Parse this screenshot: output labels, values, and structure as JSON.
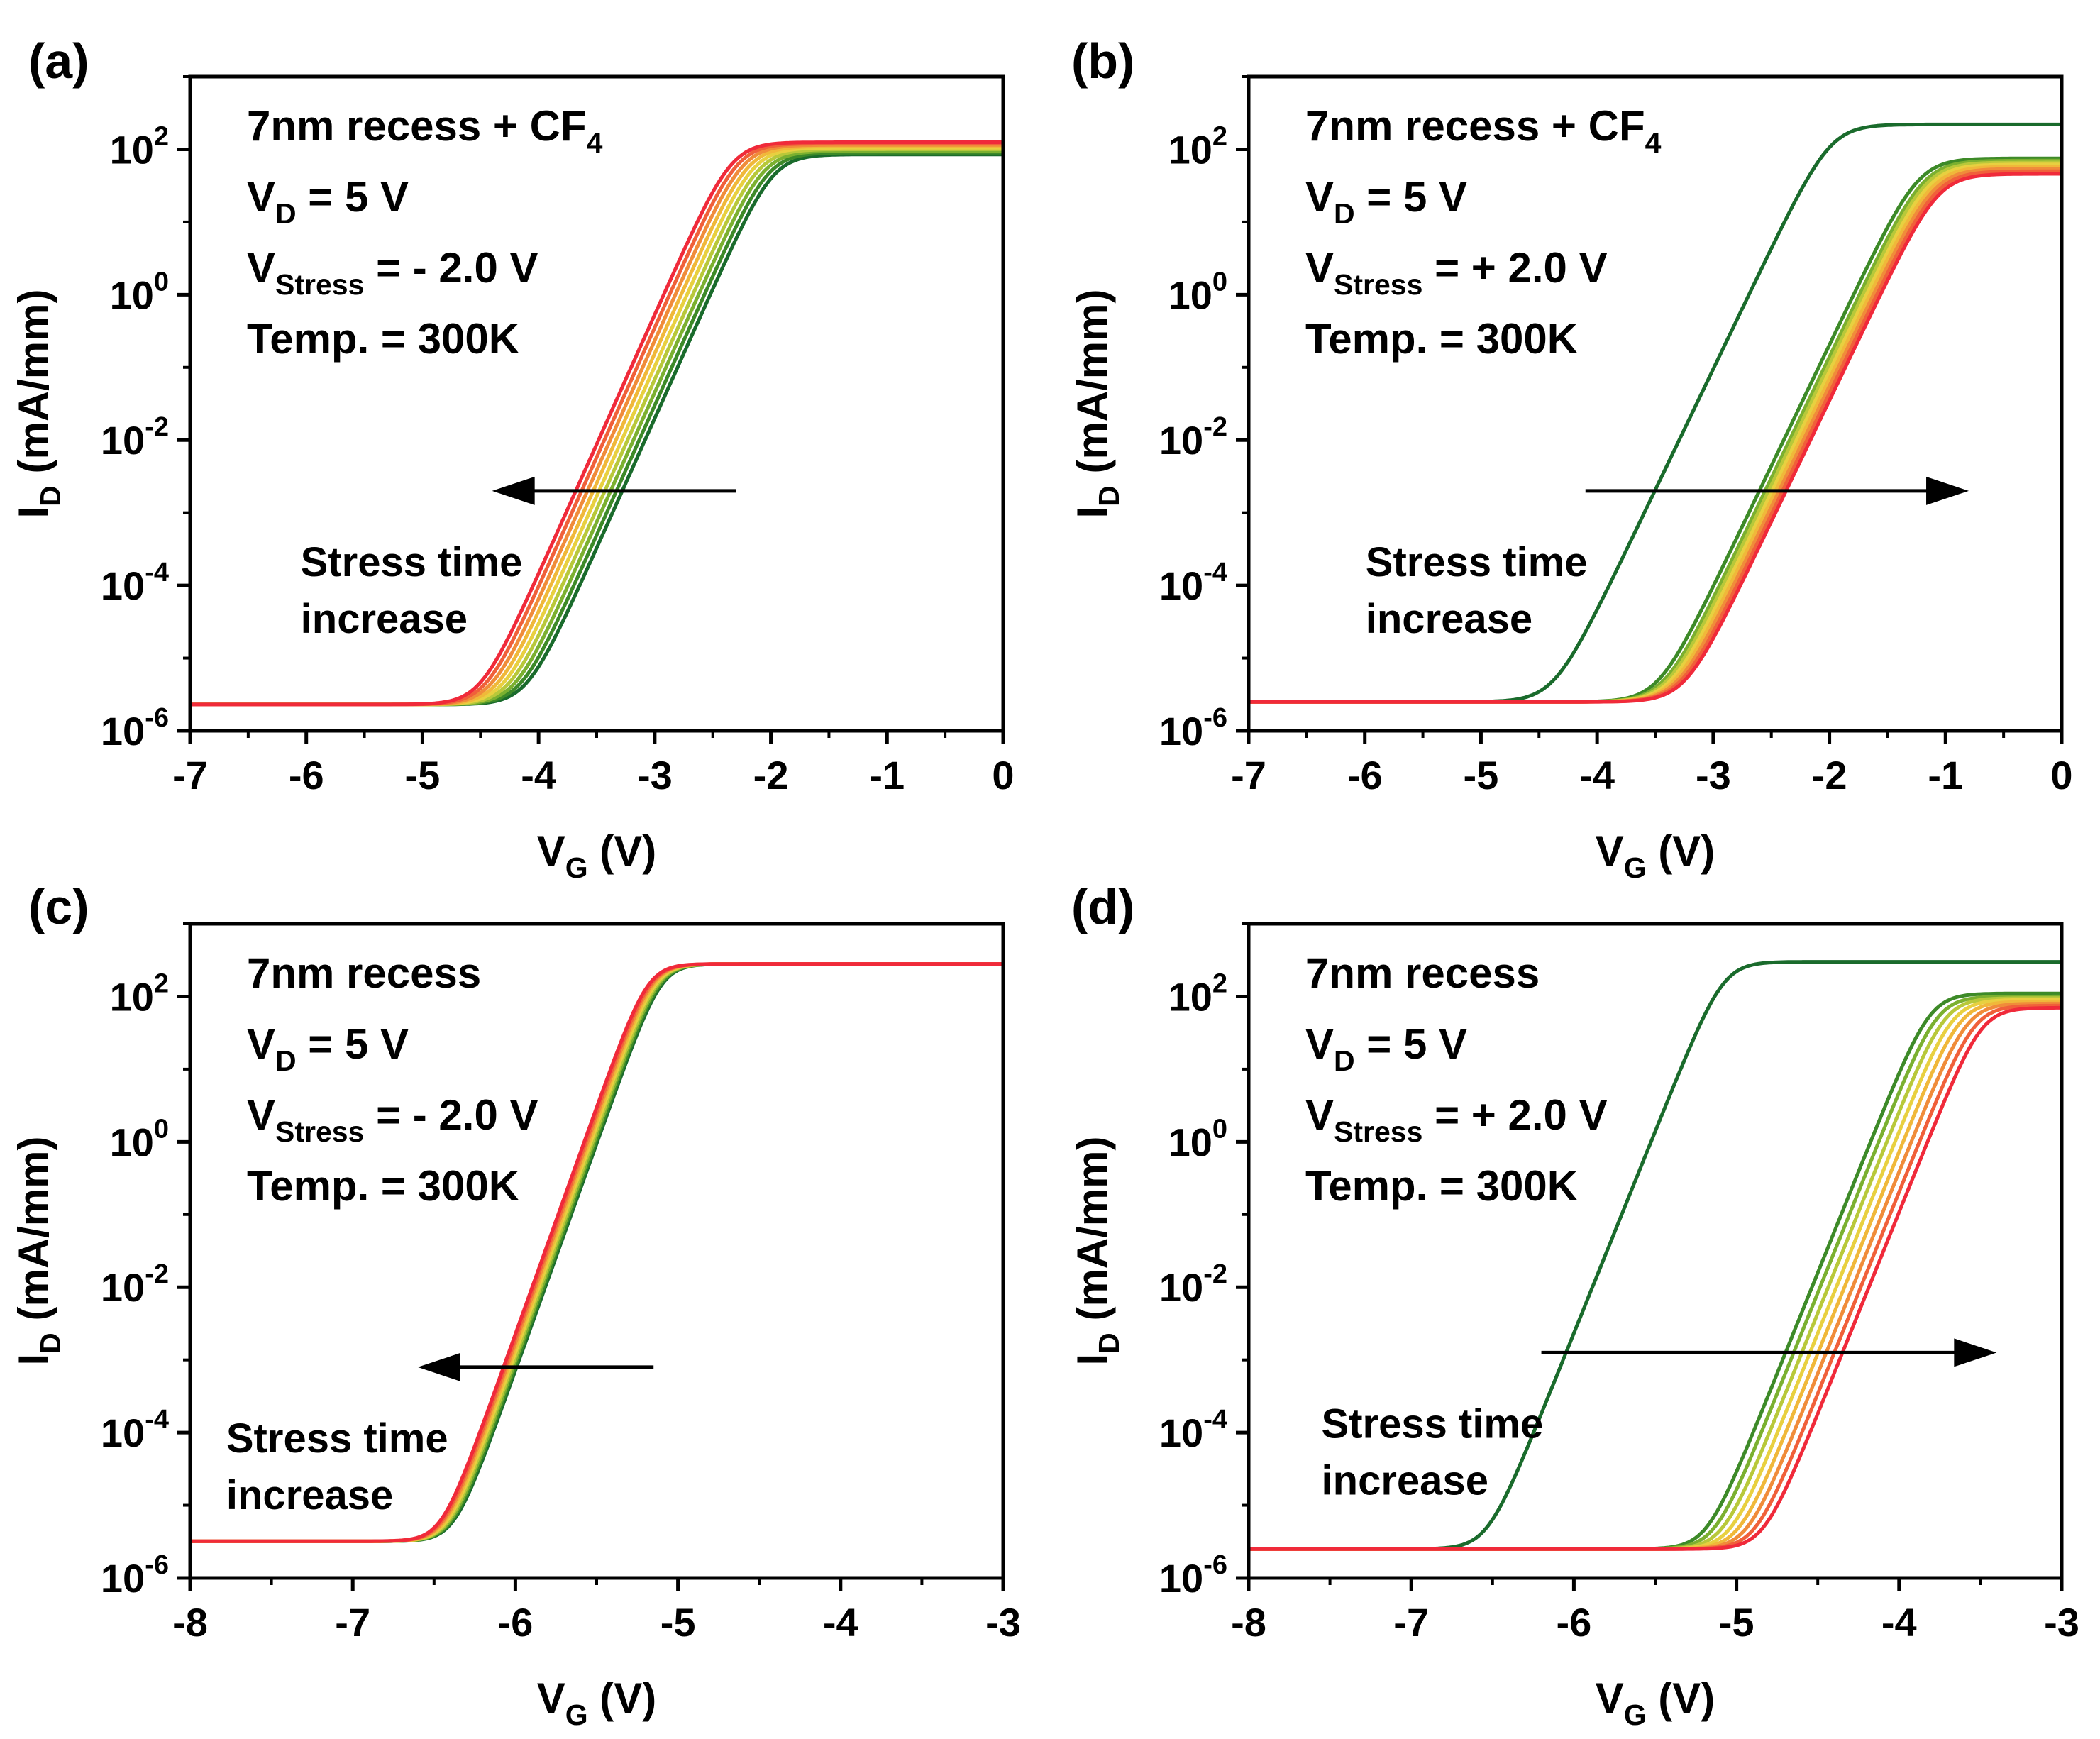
{
  "figure": {
    "series_colors": [
      "#1a6b2c",
      "#3d8a28",
      "#7bb030",
      "#b8c83a",
      "#e8d040",
      "#f0b83a",
      "#f08c3a",
      "#f0603a",
      "#f02a3a"
    ],
    "arrow_label_line1": "Stress time",
    "arrow_label_line2": "increase"
  },
  "chart_data": [
    {
      "panel": "(a)",
      "type": "line",
      "title_lines": [
        {
          "main": "7nm recess + CF",
          "sub": "4",
          "tail": ""
        },
        {
          "main": "V",
          "sub": "D",
          "tail": " = 5 V"
        },
        {
          "main": "V",
          "sub": "Stress",
          "tail": " = - 2.0 V"
        },
        {
          "main": "Temp. = 300K",
          "sub": "",
          "tail": ""
        }
      ],
      "xlabel": {
        "main": "V",
        "sub": "G",
        "tail": " (V)"
      },
      "ylabel": {
        "main": "I",
        "sub": "D",
        "tail": " (mA/mm)"
      },
      "xlim": [
        -7,
        0
      ],
      "ylim_log10": [
        -6,
        3
      ],
      "xticks": [
        "-7",
        "-6",
        "-5",
        "-4",
        "-3",
        "-2",
        "-1",
        "0"
      ],
      "yticks": [
        {
          "base": "10",
          "exp": "-6"
        },
        {
          "base": "10",
          "exp": "-4"
        },
        {
          "base": "10",
          "exp": "-2"
        },
        {
          "base": "10",
          "exp": "0"
        },
        {
          "base": "10",
          "exp": "2"
        }
      ],
      "arrow_direction": "left",
      "arrow_from_x": -2.3,
      "arrow_to_x": -4.4,
      "arrow_y_log10": -2.7,
      "arrow_label": {
        "text1": "Stress time",
        "text2": "increase",
        "position": "below-left"
      },
      "series": [
        {
          "name": "stress-0",
          "vth": -2.95,
          "floor": 2.3e-06,
          "sat": 85
        },
        {
          "name": "stress-1",
          "vth": -3.0,
          "floor": 2.3e-06,
          "sat": 90
        },
        {
          "name": "stress-2",
          "vth": -3.05,
          "floor": 2.3e-06,
          "sat": 95
        },
        {
          "name": "stress-3",
          "vth": -3.1,
          "floor": 2.3e-06,
          "sat": 100
        },
        {
          "name": "stress-4",
          "vth": -3.15,
          "floor": 2.3e-06,
          "sat": 105
        },
        {
          "name": "stress-5",
          "vth": -3.2,
          "floor": 2.3e-06,
          "sat": 110
        },
        {
          "name": "stress-6",
          "vth": -3.25,
          "floor": 2.3e-06,
          "sat": 115
        },
        {
          "name": "stress-7",
          "vth": -3.3,
          "floor": 2.3e-06,
          "sat": 120
        },
        {
          "name": "stress-8",
          "vth": -3.35,
          "floor": 2.3e-06,
          "sat": 125
        }
      ],
      "subthreshold_slope_V_per_dec": 0.28,
      "saturation_width_V": 0.9
    },
    {
      "panel": "(b)",
      "type": "line",
      "title_lines": [
        {
          "main": "7nm recess + CF",
          "sub": "4",
          "tail": ""
        },
        {
          "main": "V",
          "sub": "D",
          "tail": " = 5 V"
        },
        {
          "main": "V",
          "sub": "Stress",
          "tail": " = + 2.0 V"
        },
        {
          "main": "Temp. = 300K",
          "sub": "",
          "tail": ""
        }
      ],
      "xlabel": {
        "main": "V",
        "sub": "G",
        "tail": " (V)"
      },
      "ylabel": {
        "main": "I",
        "sub": "D",
        "tail": " (mA/mm)"
      },
      "xlim": [
        -7,
        0
      ],
      "ylim_log10": [
        -6,
        3
      ],
      "xticks": [
        "-7",
        "-6",
        "-5",
        "-4",
        "-3",
        "-2",
        "-1",
        "0"
      ],
      "yticks": [
        {
          "base": "10",
          "exp": "-6"
        },
        {
          "base": "10",
          "exp": "-4"
        },
        {
          "base": "10",
          "exp": "-2"
        },
        {
          "base": "10",
          "exp": "0"
        },
        {
          "base": "10",
          "exp": "2"
        }
      ],
      "arrow_direction": "right",
      "arrow_from_x": -4.1,
      "arrow_to_x": -0.8,
      "arrow_y_log10": -2.7,
      "arrow_label": {
        "text1": "Stress time",
        "text2": "increase",
        "position": "below-left"
      },
      "series": [
        {
          "name": "stress-0",
          "vth": -3.15,
          "floor": 2.5e-06,
          "sat": 220
        },
        {
          "name": "stress-1",
          "vth": -2.25,
          "floor": 2.5e-06,
          "sat": 75
        },
        {
          "name": "stress-2",
          "vth": -2.2,
          "floor": 2.5e-06,
          "sat": 70
        },
        {
          "name": "stress-3",
          "vth": -2.17,
          "floor": 2.5e-06,
          "sat": 66
        },
        {
          "name": "stress-4",
          "vth": -2.14,
          "floor": 2.5e-06,
          "sat": 62
        },
        {
          "name": "stress-5",
          "vth": -2.11,
          "floor": 2.5e-06,
          "sat": 58
        },
        {
          "name": "stress-6",
          "vth": -2.08,
          "floor": 2.5e-06,
          "sat": 54
        },
        {
          "name": "stress-7",
          "vth": -2.05,
          "floor": 2.5e-06,
          "sat": 50
        },
        {
          "name": "stress-8",
          "vth": -2.02,
          "floor": 2.5e-06,
          "sat": 46
        }
      ],
      "subthreshold_slope_V_per_dec": 0.3,
      "saturation_width_V": 1.2
    },
    {
      "panel": "(c)",
      "type": "line",
      "title_lines": [
        {
          "main": "7nm recess",
          "sub": "",
          "tail": ""
        },
        {
          "main": "V",
          "sub": "D",
          "tail": " = 5 V"
        },
        {
          "main": "V",
          "sub": "Stress",
          "tail": " = - 2.0 V"
        },
        {
          "main": "Temp. = 300K",
          "sub": "",
          "tail": ""
        }
      ],
      "xlabel": {
        "main": "V",
        "sub": "G",
        "tail": " (V)"
      },
      "ylabel": {
        "main": "I",
        "sub": "D",
        "tail": " (mA/mm)"
      },
      "xlim": [
        -8,
        -3
      ],
      "ylim_log10": [
        -6,
        3
      ],
      "xticks": [
        "-8",
        "-7",
        "-6",
        "-5",
        "-4",
        "-3"
      ],
      "yticks": [
        {
          "base": "10",
          "exp": "-6"
        },
        {
          "base": "10",
          "exp": "-4"
        },
        {
          "base": "10",
          "exp": "-2"
        },
        {
          "base": "10",
          "exp": "0"
        },
        {
          "base": "10",
          "exp": "2"
        }
      ],
      "arrow_direction": "left",
      "arrow_from_x": -5.15,
      "arrow_to_x": -6.6,
      "arrow_y_log10": -3.1,
      "arrow_label": {
        "text1": "Stress time",
        "text2": "increase",
        "position": "below-left"
      },
      "series": [
        {
          "name": "stress-0",
          "vth": -5.74,
          "floor": 3.2e-06,
          "sat": 280
        },
        {
          "name": "stress-1",
          "vth": -5.75,
          "floor": 3.2e-06,
          "sat": 280
        },
        {
          "name": "stress-2",
          "vth": -5.76,
          "floor": 3.2e-06,
          "sat": 280
        },
        {
          "name": "stress-3",
          "vth": -5.77,
          "floor": 3.2e-06,
          "sat": 280
        },
        {
          "name": "stress-4",
          "vth": -5.78,
          "floor": 3.2e-06,
          "sat": 280
        },
        {
          "name": "stress-5",
          "vth": -5.79,
          "floor": 3.2e-06,
          "sat": 280
        },
        {
          "name": "stress-6",
          "vth": -5.8,
          "floor": 3.2e-06,
          "sat": 280
        },
        {
          "name": "stress-7",
          "vth": -5.81,
          "floor": 3.2e-06,
          "sat": 280
        },
        {
          "name": "stress-8",
          "vth": -5.82,
          "floor": 3.2e-06,
          "sat": 280
        }
      ],
      "subthreshold_slope_V_per_dec": 0.16,
      "saturation_width_V": 1.0
    },
    {
      "panel": "(d)",
      "type": "line",
      "title_lines": [
        {
          "main": "7nm recess",
          "sub": "",
          "tail": ""
        },
        {
          "main": "V",
          "sub": "D",
          "tail": " = 5 V"
        },
        {
          "main": "V",
          "sub": "Stress",
          "tail": " = + 2.0 V"
        },
        {
          "main": "Temp. = 300K",
          "sub": "",
          "tail": ""
        }
      ],
      "xlabel": {
        "main": "V",
        "sub": "G",
        "tail": " (V)"
      },
      "ylabel": {
        "main": "I",
        "sub": "D",
        "tail": " (mA/mm)"
      },
      "xlim": [
        -8,
        -3
      ],
      "ylim_log10": [
        -6,
        3
      ],
      "xticks": [
        "-8",
        "-7",
        "-6",
        "-5",
        "-4",
        "-3"
      ],
      "yticks": [
        {
          "base": "10",
          "exp": "-6"
        },
        {
          "base": "10",
          "exp": "-4"
        },
        {
          "base": "10",
          "exp": "-2"
        },
        {
          "base": "10",
          "exp": "0"
        },
        {
          "base": "10",
          "exp": "2"
        }
      ],
      "arrow_direction": "right",
      "arrow_from_x": -6.2,
      "arrow_to_x": -3.4,
      "arrow_y_log10": -2.9,
      "arrow_label": {
        "text1": "Stress time",
        "text2": "increase",
        "position": "below-left"
      },
      "series": [
        {
          "name": "stress-0",
          "vth": -5.8,
          "floor": 2.5e-06,
          "sat": 300
        },
        {
          "name": "stress-1",
          "vth": -4.45,
          "floor": 2.5e-06,
          "sat": 110
        },
        {
          "name": "stress-2",
          "vth": -4.4,
          "floor": 2.5e-06,
          "sat": 100
        },
        {
          "name": "stress-3",
          "vth": -4.35,
          "floor": 2.5e-06,
          "sat": 95
        },
        {
          "name": "stress-4",
          "vth": -4.3,
          "floor": 2.5e-06,
          "sat": 90
        },
        {
          "name": "stress-5",
          "vth": -4.25,
          "floor": 2.5e-06,
          "sat": 85
        },
        {
          "name": "stress-6",
          "vth": -4.2,
          "floor": 2.5e-06,
          "sat": 80
        },
        {
          "name": "stress-7",
          "vth": -4.15,
          "floor": 2.5e-06,
          "sat": 75
        },
        {
          "name": "stress-8",
          "vth": -4.1,
          "floor": 2.5e-06,
          "sat": 70
        }
      ],
      "subthreshold_slope_V_per_dec": 0.18,
      "saturation_width_V": 0.8
    }
  ]
}
